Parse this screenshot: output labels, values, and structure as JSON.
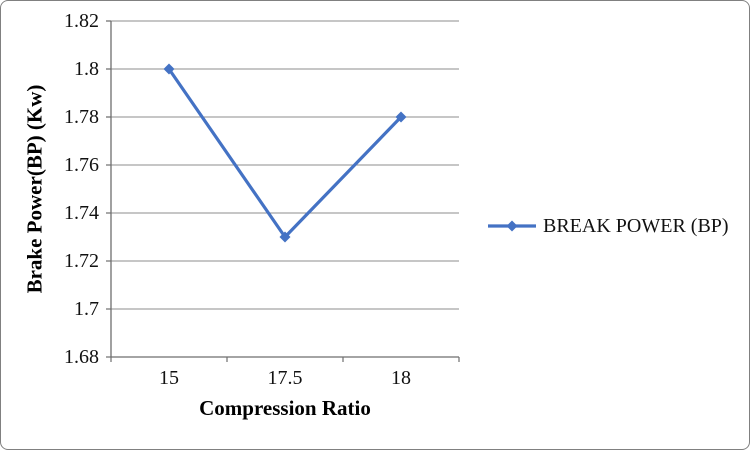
{
  "chart_data": {
    "type": "line",
    "categories": [
      "15",
      "17.5",
      "18"
    ],
    "series": [
      {
        "name": "BREAK POWER (BP)",
        "values": [
          1.8,
          1.73,
          1.78
        ],
        "color": "#4472C4",
        "marker": "diamond"
      }
    ],
    "xlabel": "Compression Ratio",
    "ylabel": "Brake Power(BP) (Kw)",
    "ylim": [
      1.68,
      1.82
    ],
    "y_ticks": [
      1.68,
      1.7,
      1.72,
      1.74,
      1.76,
      1.78,
      1.8,
      1.82
    ],
    "grid": true,
    "legend_position": "right",
    "colors": {
      "series": "#4472C4",
      "gridline": "#8C8C8C",
      "axis": "#6E6E6E",
      "text": "#000000",
      "background": "#FFFFFF",
      "border": "#808080"
    }
  }
}
